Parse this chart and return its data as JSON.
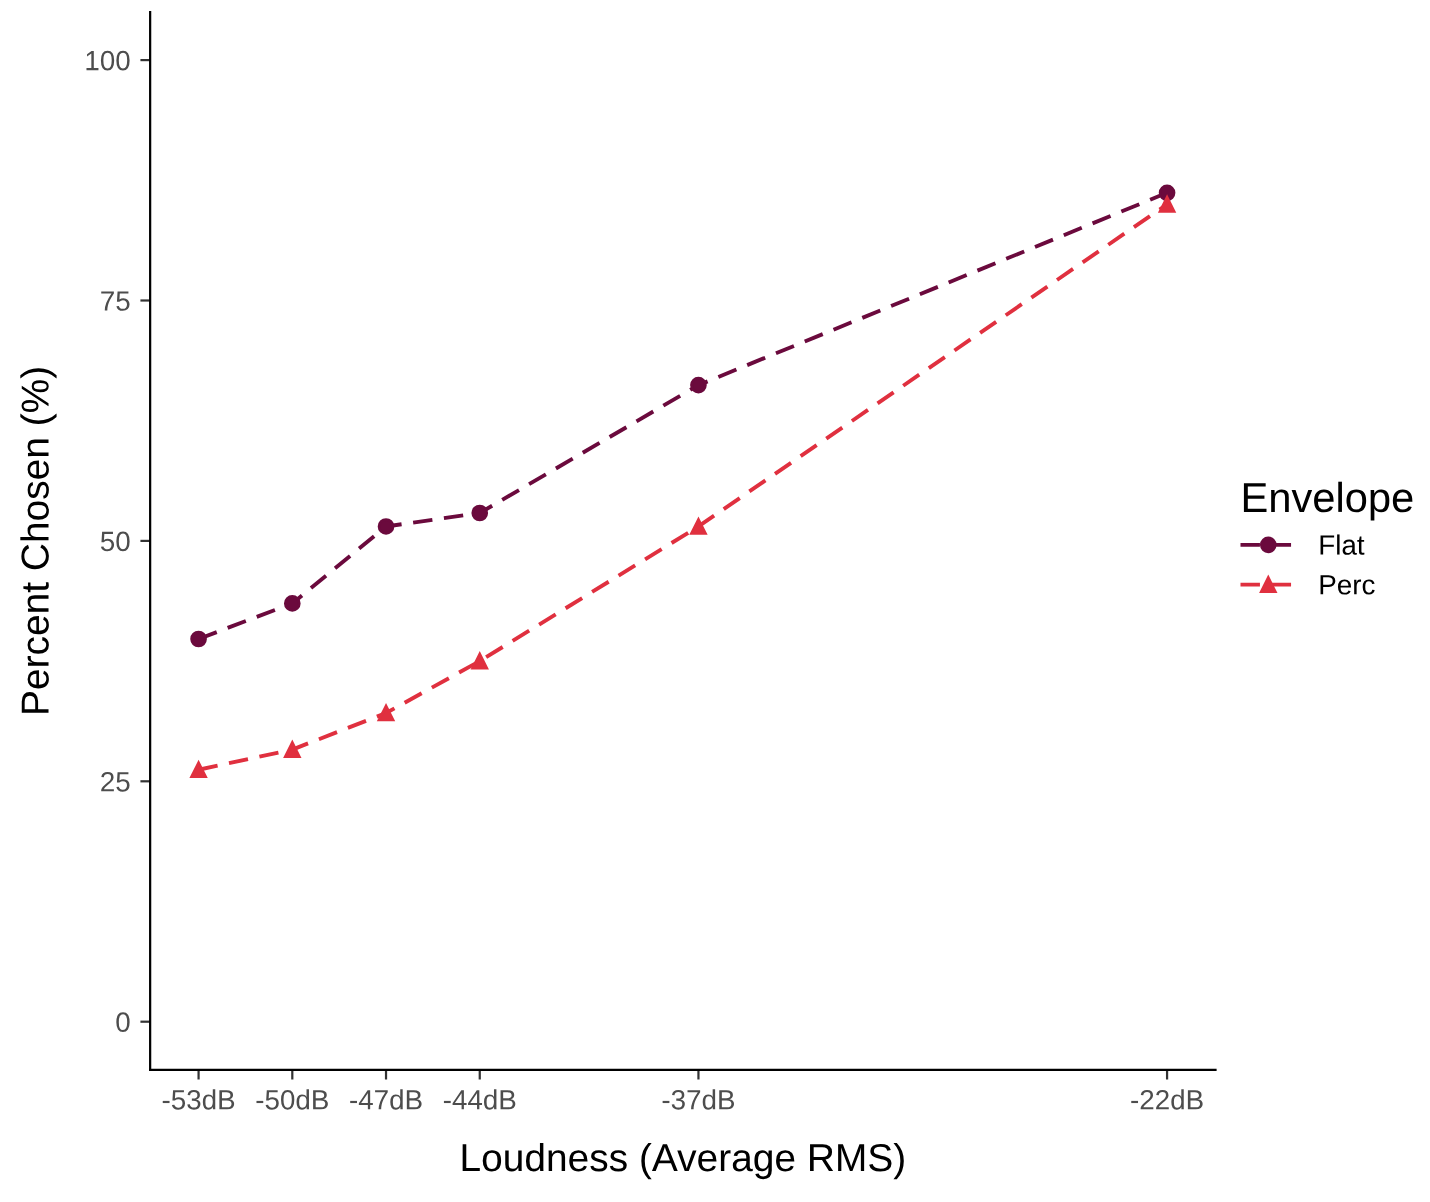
{
  "chart_data": {
    "type": "line",
    "xlabel": "Loudness (Average RMS)",
    "ylabel": "Percent Chosen (%)",
    "legend_title": "Envelope",
    "x": [
      -53,
      -50,
      -47,
      -44,
      -37,
      -22
    ],
    "series": [
      {
        "name": "Flat",
        "color": "#6b0a3d",
        "marker": "circle",
        "values": [
          39.8,
          43.5,
          51.5,
          52.9,
          66.2,
          86.2
        ]
      },
      {
        "name": "Perc",
        "color": "#e0303f",
        "marker": "triangle",
        "values": [
          26.2,
          28.3,
          32.1,
          37.5,
          51.5,
          85.0
        ]
      }
    ],
    "xlim": [
      -54.55,
      -20.45
    ],
    "ylim": [
      -5,
      105
    ],
    "xticks": [
      {
        "value": -53,
        "label": "-53dB"
      },
      {
        "value": -50,
        "label": "-50dB"
      },
      {
        "value": -47,
        "label": "-47dB"
      },
      {
        "value": -44,
        "label": "-44dB"
      },
      {
        "value": -37,
        "label": "-37dB"
      },
      {
        "value": -22,
        "label": "-22dB"
      }
    ],
    "yticks": [
      0,
      25,
      50,
      75,
      100
    ],
    "line_style": "dashed",
    "grid": false,
    "legend": "right"
  }
}
